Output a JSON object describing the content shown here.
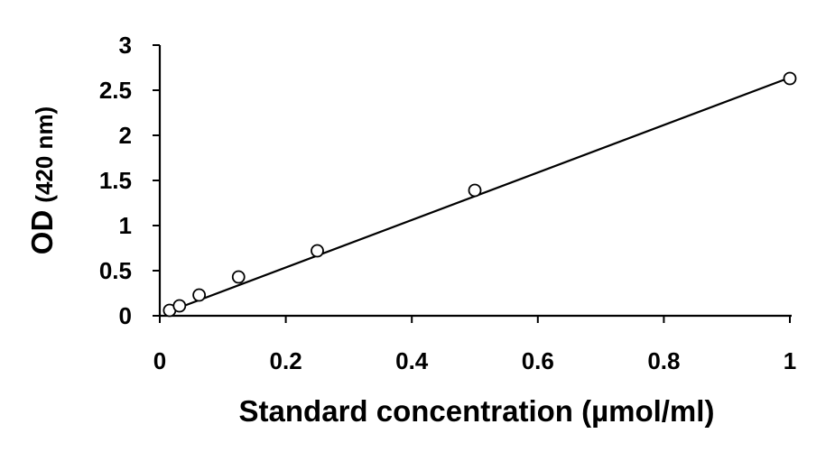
{
  "chart_data": {
    "type": "scatter",
    "title": "",
    "xlabel": "Standard concentration (µmol/ml)",
    "ylabel_main": "OD",
    "ylabel_unit": "(420 nm)",
    "xlim": [
      0,
      1
    ],
    "ylim": [
      0,
      3
    ],
    "x_ticks": [
      0,
      0.2,
      0.4,
      0.6,
      0.8,
      1
    ],
    "x_tick_labels": [
      "0",
      "0.2",
      "0.4",
      "0.6",
      "0.8",
      "1"
    ],
    "y_ticks": [
      0,
      0.5,
      1,
      1.5,
      2,
      2.5,
      3
    ],
    "y_tick_labels": [
      "0",
      "0.5",
      "1",
      "1.5",
      "2",
      "2.5",
      "3"
    ],
    "grid": false,
    "legend": "none",
    "series": [
      {
        "name": "Standard",
        "marker": "open-circle",
        "x": [
          0.0156,
          0.03125,
          0.0625,
          0.125,
          0.25,
          0.5,
          1
        ],
        "y": [
          0.06,
          0.11,
          0.23,
          0.43,
          0.72,
          1.39,
          2.63
        ]
      }
    ],
    "trendline": {
      "type": "linear",
      "x": [
        0.0156,
        1
      ],
      "y": [
        0.05,
        2.64
      ]
    },
    "colors": {
      "axis": "#000000",
      "marker_stroke": "#000000",
      "marker_fill": "#ffffff",
      "line": "#000000"
    }
  }
}
